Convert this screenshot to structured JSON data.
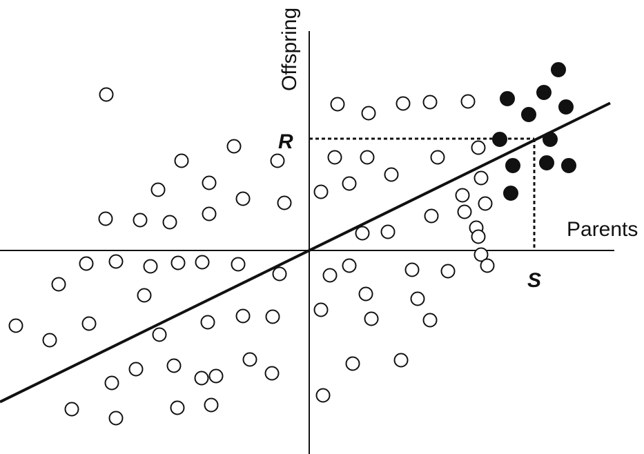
{
  "chart_data": {
    "type": "scatter",
    "title": "",
    "xlabel": "Parents",
    "ylabel": "Offspring",
    "xlim": [
      -448,
      443
    ],
    "ylim": [
      -296,
      318
    ],
    "grid": false,
    "legend": "none",
    "colors": {
      "ink": "#111111",
      "open_fill": "#ffffff",
      "selected_fill": "#111111"
    },
    "regression_line": {
      "slope": 0.49,
      "intercept": 0
    },
    "annotations": [
      {
        "label": "R",
        "x": 0,
        "y": 162,
        "guide": "horizontal"
      },
      {
        "label": "S",
        "x": 326,
        "y": 0,
        "guide": "vertical"
      }
    ],
    "series": [
      {
        "points": [
          [
            41,
            212
          ],
          [
            86,
            199
          ],
          [
            136,
            213
          ],
          [
            175,
            215
          ],
          [
            230,
            216
          ],
          [
            37,
            135
          ],
          [
            84,
            135
          ],
          [
            119,
            110
          ],
          [
            186,
            135
          ],
          [
            245,
            149
          ],
          [
            249,
            105
          ],
          [
            17,
            85
          ],
          [
            58,
            97
          ],
          [
            114,
            27
          ],
          [
            77,
            25
          ],
          [
            177,
            50
          ],
          [
            222,
            80
          ],
          [
            225,
            56
          ],
          [
            255,
            68
          ],
          [
            242,
            33
          ],
          [
            245,
            20
          ],
          [
            249,
            -6
          ],
          [
            258,
            -22
          ],
          [
            -294,
            226
          ],
          [
            -109,
            151
          ],
          [
            -46,
            130
          ],
          [
            -185,
            130
          ],
          [
            -145,
            98
          ],
          [
            -219,
            88
          ],
          [
            -96,
            75
          ],
          [
            -36,
            69
          ],
          [
            -295,
            46
          ],
          [
            -245,
            44
          ],
          [
            -202,
            41
          ],
          [
            -145,
            53
          ],
          [
            -323,
            -19
          ],
          [
            -280,
            -16
          ],
          [
            -230,
            -23
          ],
          [
            -190,
            -18
          ],
          [
            -155,
            -17
          ],
          [
            -103,
            -20
          ],
          [
            -43,
            -34
          ],
          [
            -363,
            -49
          ],
          [
            -239,
            -65
          ],
          [
            30,
            -36
          ],
          [
            58,
            -22
          ],
          [
            149,
            -28
          ],
          [
            201,
            -30
          ],
          [
            -425,
            -109
          ],
          [
            -376,
            -130
          ],
          [
            -319,
            -106
          ],
          [
            -217,
            -122
          ],
          [
            -147,
            -104
          ],
          [
            -96,
            -95
          ],
          [
            -53,
            -96
          ],
          [
            17,
            -86
          ],
          [
            82,
            -63
          ],
          [
            90,
            -99
          ],
          [
            157,
            -70
          ],
          [
            175,
            -101
          ],
          [
            -251,
            -172
          ],
          [
            -196,
            -167
          ],
          [
            -135,
            -182
          ],
          [
            -156,
            -185
          ],
          [
            -86,
            -158
          ],
          [
            -54,
            -178
          ],
          [
            -286,
            -192
          ],
          [
            63,
            -164
          ],
          [
            133,
            -159
          ],
          [
            -344,
            -230
          ],
          [
            -280,
            -243
          ],
          [
            -191,
            -228
          ],
          [
            -142,
            -224
          ],
          [
            20,
            -210
          ]
        ]
      },
      {
        "points": [
          [
            361,
            262
          ],
          [
            340,
            229
          ],
          [
            372,
            208
          ],
          [
            287,
            220
          ],
          [
            318,
            197
          ],
          [
            276,
            161
          ],
          [
            349,
            161
          ],
          [
            295,
            123
          ],
          [
            344,
            127
          ],
          [
            376,
            123
          ],
          [
            292,
            83
          ]
        ]
      }
    ]
  }
}
